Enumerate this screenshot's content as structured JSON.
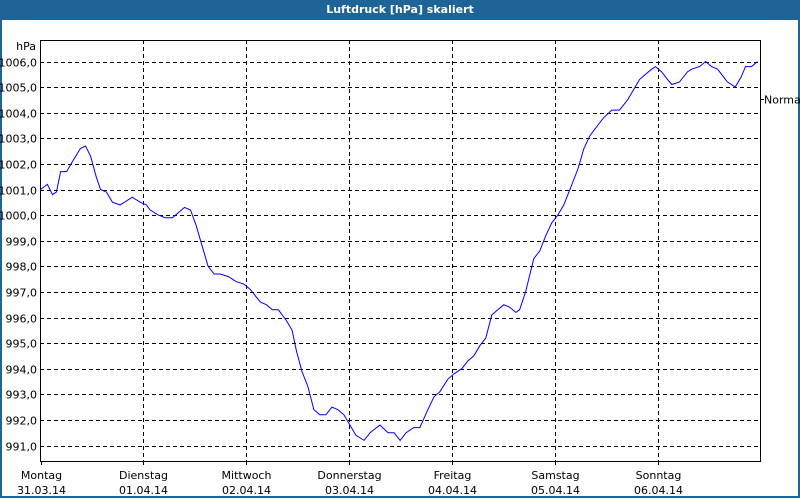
{
  "window": {
    "title": "Luftdruck [hPa] skaliert"
  },
  "chart_data": {
    "type": "line",
    "title": "Luftdruck [hPa] skaliert",
    "ylabel": "hPa",
    "xlabel": "",
    "ylim": [
      990.4,
      1006.8
    ],
    "xlim_hours": [
      0,
      168
    ],
    "y_ticks": [
      1006,
      1005,
      1004,
      1003,
      1002,
      1001,
      1000,
      999,
      998,
      997,
      996,
      995,
      994,
      993,
      992,
      991
    ],
    "y_tick_labels": [
      "1006,0",
      "1005,0",
      "1004,0",
      "1003,0",
      "1002,0",
      "1001,0",
      "1000,0",
      "999,0",
      "998,0",
      "997,0",
      "996,0",
      "995,0",
      "994,0",
      "993,0",
      "992,0",
      "991,0"
    ],
    "x_ticks": [
      {
        "hour": 0,
        "day": "Montag",
        "date": "31.03.14"
      },
      {
        "hour": 24,
        "day": "Dienstag",
        "date": "01.04.14"
      },
      {
        "hour": 48,
        "day": "Mittwoch",
        "date": "02.04.14"
      },
      {
        "hour": 72,
        "day": "Donnerstag",
        "date": "03.04.14"
      },
      {
        "hour": 96,
        "day": "Freitag",
        "date": "04.04.14"
      },
      {
        "hour": 120,
        "day": "Samstag",
        "date": "05.04.14"
      },
      {
        "hour": 144,
        "day": "Sonntag",
        "date": "06.04.14"
      }
    ],
    "grid": true,
    "reference": {
      "label": "Normal",
      "value": 1004.55
    },
    "series": [
      {
        "name": "Luftdruck",
        "color": "#0000ff",
        "x": [
          0,
          1.6,
          2.8,
          3.7,
          4.7,
          6.1,
          7.5,
          9.3,
          10.5,
          11.7,
          13,
          14,
          15.4,
          16.8,
          18.6,
          20.5,
          21.4,
          23.3,
          24.7,
          25.6,
          27.5,
          29.1,
          30.8,
          32.2,
          33.6,
          35,
          36.3,
          37.7,
          39.1,
          40.5,
          41.9,
          43.8,
          45.7,
          47.5,
          48.9,
          51.3,
          52.7,
          54.1,
          55.5,
          57.3,
          58.7,
          59.7,
          61,
          62.4,
          63.8,
          65.2,
          66.6,
          68,
          69.4,
          70.8,
          72.2,
          73.6,
          75.5,
          76.9,
          79.2,
          81.1,
          82.5,
          83.9,
          85.3,
          87.1,
          88.5,
          90.4,
          91.8,
          93.2,
          95.1,
          96.5,
          98.3,
          99.7,
          101.1,
          102.5,
          103.9,
          105.3,
          106.7,
          108.1,
          109.5,
          110.9,
          111.8,
          113.2,
          115.1,
          116.5,
          117.9,
          119.3,
          120.7,
          122.1,
          124,
          125.4,
          126.8,
          128.2,
          130,
          131.4,
          133.3,
          135.1,
          137,
          138.4,
          139.8,
          141.2,
          142.6,
          143.5,
          144.9,
          146.3,
          147.3,
          149.1,
          151,
          151.9,
          153.8,
          155.2,
          156.6,
          158,
          158.9,
          160.3,
          161.2,
          162.1,
          163.5,
          164.5,
          165.9,
          167.3
        ],
        "y": [
          1001.0,
          1001.2,
          1000.8,
          1000.9,
          1001.7,
          1001.7,
          1002.1,
          1002.6,
          1002.7,
          1002.3,
          1001.5,
          1001.0,
          1000.9,
          1000.5,
          1000.4,
          1000.6,
          1000.7,
          1000.5,
          1000.4,
          1000.2,
          1000.0,
          999.9,
          999.9,
          1000.1,
          1000.3,
          1000.2,
          999.6,
          998.8,
          998.0,
          997.7,
          997.7,
          997.6,
          997.4,
          997.3,
          997.1,
          996.6,
          996.5,
          996.3,
          996.3,
          995.9,
          995.5,
          994.7,
          993.9,
          993.3,
          992.4,
          992.2,
          992.2,
          992.5,
          992.4,
          992.2,
          991.8,
          991.4,
          991.2,
          991.5,
          991.8,
          991.5,
          991.5,
          991.2,
          991.5,
          991.7,
          991.7,
          992.4,
          992.9,
          993.1,
          993.6,
          993.8,
          994.0,
          994.3,
          994.5,
          994.9,
          995.2,
          996.1,
          996.3,
          996.5,
          996.4,
          996.2,
          996.3,
          997.0,
          998.3,
          998.6,
          999.2,
          999.7,
          1000.0,
          1000.4,
          1001.2,
          1001.8,
          1002.6,
          1003.1,
          1003.5,
          1003.8,
          1004.1,
          1004.1,
          1004.5,
          1004.9,
          1005.3,
          1005.5,
          1005.7,
          1005.8,
          1005.6,
          1005.3,
          1005.1,
          1005.2,
          1005.6,
          1005.7,
          1005.8,
          1006.0,
          1005.8,
          1005.7,
          1005.5,
          1005.2,
          1005.1,
          1005.0,
          1005.4,
          1005.8,
          1005.8,
          1006.0
        ]
      }
    ]
  }
}
